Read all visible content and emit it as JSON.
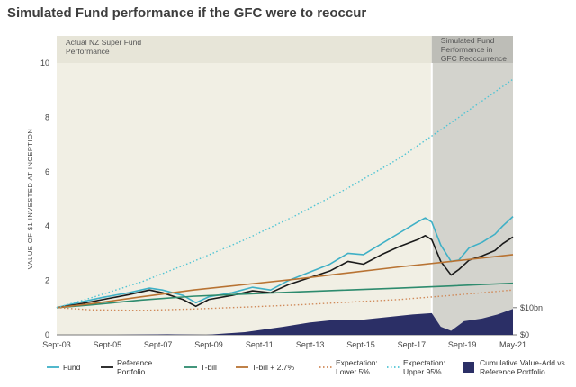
{
  "title": "Simulated Fund performance if the GFC were to reoccur",
  "chart_data": {
    "type": "line",
    "title": "Simulated Fund performance if the GFC were to reoccur",
    "ylabel": "VALUE OF $1 INVESTED AT INCEPTION",
    "ylim": [
      0,
      10
    ],
    "yticks": [
      "0",
      "2",
      "4",
      "6",
      "8",
      "10"
    ],
    "xticks": [
      "Sept-03",
      "Sept-05",
      "Sept-07",
      "Sept-09",
      "Sept-11",
      "Sept-13",
      "Sept-15",
      "Sept-17",
      "Sept-19",
      "May-21"
    ],
    "secondary_axis_labels": [
      "$10bn",
      "$0"
    ],
    "annotations": {
      "actual": "Actual NZ Super Fund Performance",
      "simulated": "Simulated Fund Performance in GFC Reoccurrence"
    },
    "simulated_region_start": 2018.25,
    "series": [
      {
        "name": "Fund",
        "color": "#3fb0c6",
        "style": "solid",
        "x": [
          2003.7,
          2004.5,
          2005.5,
          2006.5,
          2007.3,
          2007.8,
          2008.6,
          2009.1,
          2009.6,
          2010.5,
          2011.3,
          2012.0,
          2012.7,
          2013.5,
          2014.3,
          2015.0,
          2015.6,
          2016.3,
          2017.0,
          2017.7,
          2018.0,
          2018.25,
          2018.6,
          2019.0,
          2019.3,
          2019.7,
          2020.2,
          2020.7,
          2021.0,
          2021.4
        ],
        "y": [
          1.0,
          1.18,
          1.38,
          1.55,
          1.72,
          1.65,
          1.45,
          1.18,
          1.4,
          1.55,
          1.75,
          1.65,
          2.0,
          2.3,
          2.6,
          3.0,
          2.95,
          3.35,
          3.75,
          4.15,
          4.3,
          4.15,
          3.3,
          2.7,
          2.75,
          3.2,
          3.4,
          3.7,
          4.0,
          4.35
        ]
      },
      {
        "name": "Reference Portfolio",
        "color": "#1a1a1a",
        "style": "solid",
        "x": [
          2003.7,
          2004.5,
          2005.5,
          2006.5,
          2007.3,
          2007.8,
          2008.6,
          2009.1,
          2009.6,
          2010.5,
          2011.3,
          2012.0,
          2012.7,
          2013.5,
          2014.3,
          2015.0,
          2015.6,
          2016.3,
          2017.0,
          2017.7,
          2018.0,
          2018.25,
          2018.6,
          2019.0,
          2019.3,
          2019.7,
          2020.2,
          2020.7,
          2021.0,
          2021.4
        ],
        "y": [
          1.0,
          1.12,
          1.3,
          1.48,
          1.65,
          1.55,
          1.3,
          1.05,
          1.3,
          1.45,
          1.62,
          1.55,
          1.85,
          2.1,
          2.35,
          2.7,
          2.6,
          2.95,
          3.25,
          3.5,
          3.65,
          3.5,
          2.7,
          2.2,
          2.4,
          2.75,
          2.9,
          3.1,
          3.35,
          3.6
        ]
      },
      {
        "name": "T-bill",
        "color": "#2e8b6e",
        "style": "solid",
        "x": [
          2003.7,
          2005.0,
          2007.0,
          2009.0,
          2011.0,
          2013.0,
          2015.0,
          2017.0,
          2019.0,
          2021.4
        ],
        "y": [
          1.0,
          1.1,
          1.28,
          1.42,
          1.5,
          1.58,
          1.65,
          1.72,
          1.8,
          1.9
        ]
      },
      {
        "name": "T-bill + 2.7%",
        "color": "#b87333",
        "style": "solid",
        "x": [
          2003.7,
          2005.0,
          2007.0,
          2009.0,
          2011.0,
          2013.0,
          2015.0,
          2017.0,
          2019.0,
          2021.4
        ],
        "y": [
          1.0,
          1.14,
          1.4,
          1.65,
          1.85,
          2.05,
          2.28,
          2.5,
          2.7,
          2.95
        ]
      },
      {
        "name": "Expectation: Lower 5%",
        "color": "#d08a5a",
        "style": "dotted",
        "x": [
          2003.7,
          2005.0,
          2007.0,
          2009.0,
          2011.0,
          2013.0,
          2015.0,
          2017.0,
          2019.0,
          2021.4
        ],
        "y": [
          1.0,
          0.92,
          0.9,
          0.95,
          1.02,
          1.1,
          1.2,
          1.3,
          1.45,
          1.65
        ]
      },
      {
        "name": "Expectation: Upper 95%",
        "color": "#4fc4d4",
        "style": "dotted",
        "x": [
          2003.7,
          2005.0,
          2007.0,
          2009.0,
          2011.0,
          2013.0,
          2015.0,
          2017.0,
          2019.0,
          2021.4
        ],
        "y": [
          1.0,
          1.35,
          1.95,
          2.7,
          3.5,
          4.4,
          5.4,
          6.5,
          7.8,
          9.4
        ]
      },
      {
        "name": "Cumulative Value-Add vs Reference Portfolio",
        "color": "#2b2f66",
        "style": "area",
        "x": [
          2003.7,
          2006.0,
          2008.0,
          2009.5,
          2011.0,
          2012.5,
          2013.5,
          2014.5,
          2015.5,
          2016.5,
          2017.5,
          2018.25,
          2018.6,
          2019.0,
          2019.5,
          2020.2,
          2020.8,
          2021.4
        ],
        "y": [
          0.0,
          0.0,
          0.02,
          0.0,
          0.1,
          0.3,
          0.45,
          0.55,
          0.55,
          0.65,
          0.75,
          0.8,
          0.3,
          0.15,
          0.5,
          0.6,
          0.75,
          0.95
        ]
      }
    ]
  }
}
